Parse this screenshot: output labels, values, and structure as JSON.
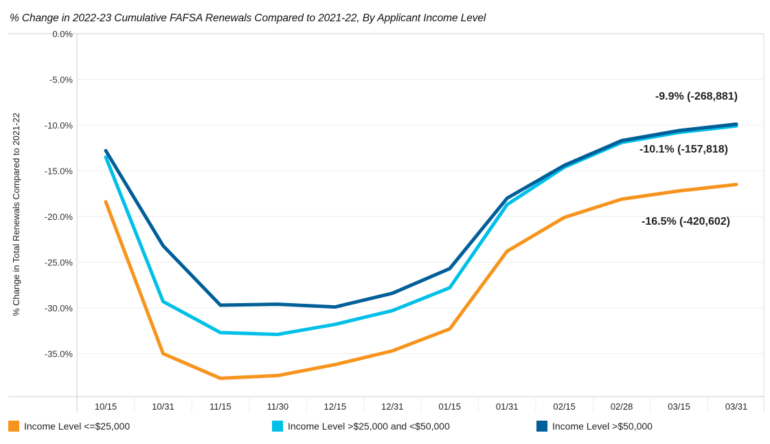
{
  "chart_data": {
    "type": "line",
    "title": "% Change in 2022-23 Cumulative FAFSA Renewals Compared to 2021-22, By Applicant Income Level",
    "xlabel": "",
    "ylabel": "% Change in Total Renewals Compared to 2021-22",
    "ylim": [
      -39.7,
      0
    ],
    "yticks": [
      0,
      -5,
      -10,
      -15,
      -20,
      -25,
      -30,
      -35
    ],
    "ytick_labels": [
      "0.0%",
      "-5.0%",
      "-10.0%",
      "-15.0%",
      "-20.0%",
      "-25.0%",
      "-30.0%",
      "-35.0%"
    ],
    "grid": true,
    "legend_position": "bottom",
    "categories": [
      "10/15",
      "10/31",
      "11/15",
      "11/30",
      "12/15",
      "12/31",
      "01/15",
      "01/31",
      "02/15",
      "02/28",
      "03/15",
      "03/31"
    ],
    "series": [
      {
        "name": "Income Level <=$25,000",
        "color": "#f7941d",
        "values": [
          -18.4,
          -35.0,
          -37.7,
          -37.4,
          -36.2,
          -34.7,
          -32.3,
          -23.8,
          -20.1,
          -18.1,
          -17.2,
          -16.5
        ],
        "end_label": "-16.5% (-420,602)"
      },
      {
        "name": "Income Level >$25,000 and <$50,000",
        "color": "#00c0e8",
        "values": [
          -13.5,
          -29.3,
          -32.7,
          -32.9,
          -31.8,
          -30.3,
          -27.8,
          -18.7,
          -14.6,
          -11.9,
          -10.8,
          -10.1
        ],
        "end_label": "-10.1% (-157,818)"
      },
      {
        "name": "Income Level >$50,000",
        "color": "#005f99",
        "values": [
          -12.8,
          -23.2,
          -29.7,
          -29.6,
          -29.9,
          -28.4,
          -25.7,
          -18.0,
          -14.4,
          -11.7,
          -10.6,
          -9.9
        ],
        "end_label": "-9.9% (-268,881)"
      }
    ]
  }
}
